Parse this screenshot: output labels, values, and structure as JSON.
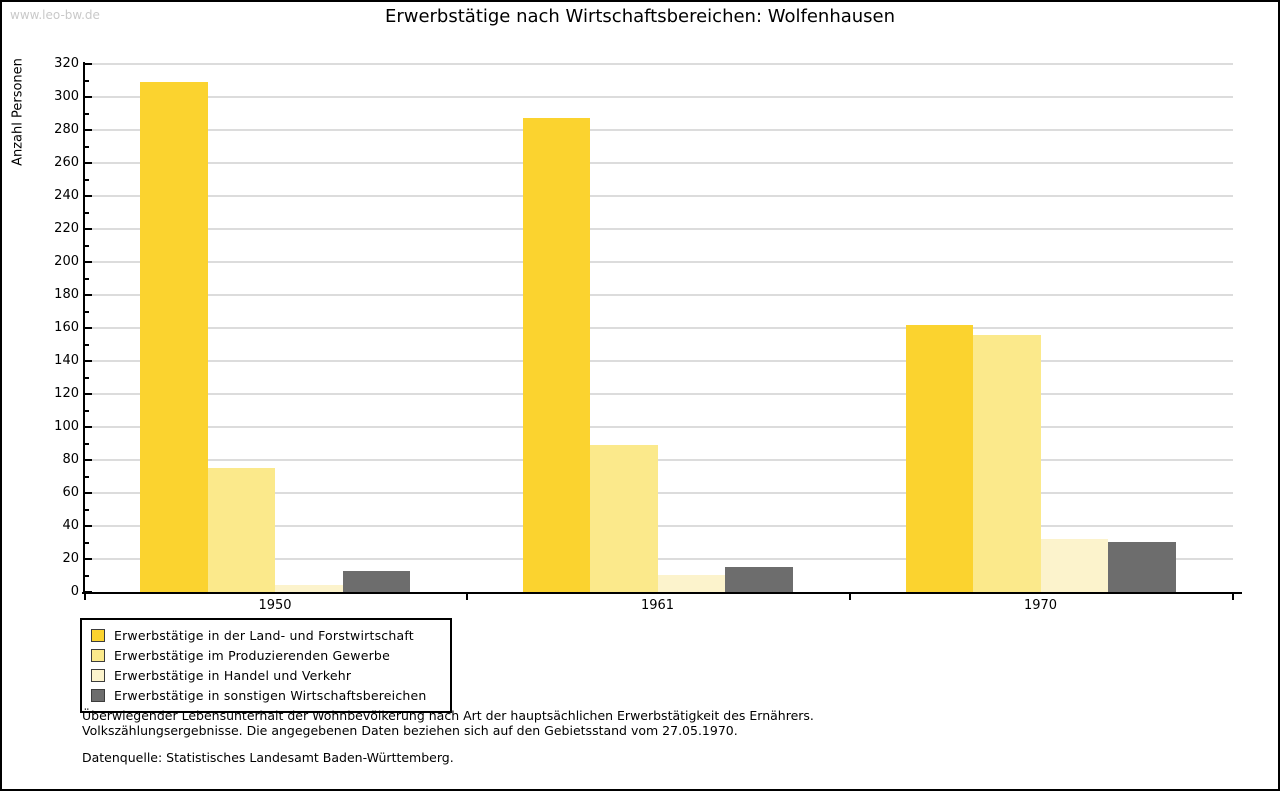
{
  "watermark": "www.leo-bw.de",
  "title": "Erwerbstätige nach Wirtschaftsbereichen: Wolfenhausen",
  "chart_data": {
    "type": "bar",
    "title": "Erwerbstätige nach Wirtschaftsbereichen: Wolfenhausen",
    "xlabel": "",
    "ylabel": "Anzahl Personen",
    "categories": [
      "1950",
      "1961",
      "1970"
    ],
    "series": [
      {
        "name": "Erwerbstätige in der Land- und Forstwirtschaft",
        "color": "#fbd32f",
        "values": [
          309,
          287,
          162
        ]
      },
      {
        "name": "Erwerbstätige im Produzierenden Gewerbe",
        "color": "#fbe98b",
        "values": [
          75,
          89,
          156
        ]
      },
      {
        "name": "Erwerbstätige in Handel und Verkehr",
        "color": "#fcf3cc",
        "values": [
          4,
          10,
          32
        ]
      },
      {
        "name": "Erwerbstätige in sonstigen Wirtschaftsbereichen",
        "color": "#6d6d6d",
        "values": [
          13,
          15,
          30
        ]
      }
    ],
    "ylim": [
      0,
      320
    ],
    "ytick_step": 20,
    "ytick_minor_step": 10,
    "grid": true,
    "gridline_color": "#dcdcdc",
    "axis_color": "#000000",
    "legend_position": "bottom-left"
  },
  "footnotes": {
    "line1": "Überwiegender Lebensunterhalt der Wohnbevölkerung nach Art der hauptsächlichen Erwerbstätigkeit des Ernährers.",
    "line2": "Volkszählungsergebnisse. Die angegebenen Daten beziehen sich auf den Gebietsstand vom 27.05.1970.",
    "source": "Datenquelle: Statistisches Landesamt Baden-Württemberg."
  }
}
